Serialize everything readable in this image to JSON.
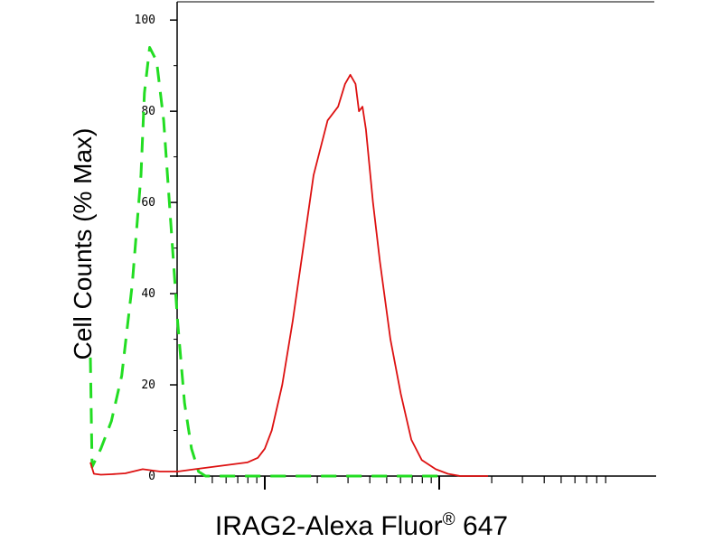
{
  "chart_data": {
    "type": "line",
    "ylabel": "Cell Counts (% Max)",
    "xlabel": {
      "text": "IRAG2-Alexa Fluor",
      "superscript": "®",
      "suffix": " 647"
    },
    "ylim": [
      0,
      104
    ],
    "xscale": "log",
    "yticks": [
      "0",
      "20",
      "40",
      "60",
      "80",
      "100"
    ],
    "grid": false,
    "series": [
      {
        "line_style": "dashed",
        "color": "#22dd22",
        "x": [
          0.0,
          0.01,
          0.06,
          0.12,
          0.18,
          0.24,
          0.29,
          0.31,
          0.34,
          0.38,
          0.42,
          0.46,
          0.5,
          0.54,
          0.58,
          0.62,
          0.66,
          1.0,
          2.0
        ],
        "y": [
          26,
          2,
          6,
          12,
          22,
          42,
          66,
          84,
          94,
          91,
          78,
          56,
          34,
          16,
          6,
          1,
          0,
          0,
          0
        ]
      },
      {
        "line_style": "solid",
        "color": "#dd1111",
        "x": [
          0.0,
          0.02,
          0.06,
          0.12,
          0.2,
          0.3,
          0.4,
          0.5,
          0.6,
          0.7,
          0.8,
          0.9,
          0.96,
          1.0,
          1.04,
          1.1,
          1.16,
          1.22,
          1.28,
          1.36,
          1.42,
          1.46,
          1.49,
          1.52,
          1.54,
          1.56,
          1.58,
          1.62,
          1.66,
          1.72,
          1.78,
          1.84,
          1.9,
          1.98,
          2.05,
          2.12,
          2.2,
          2.28
        ],
        "y": [
          3,
          0.5,
          0.3,
          0.4,
          0.6,
          1.5,
          1.0,
          1.0,
          1.5,
          2.0,
          2.5,
          3.0,
          4.0,
          6.0,
          10,
          20,
          34,
          50,
          66,
          78,
          81,
          86,
          88,
          86,
          80,
          81,
          76,
          60,
          47,
          30,
          18,
          8,
          3.5,
          1.5,
          0.5,
          0,
          0,
          0
        ]
      }
    ]
  }
}
